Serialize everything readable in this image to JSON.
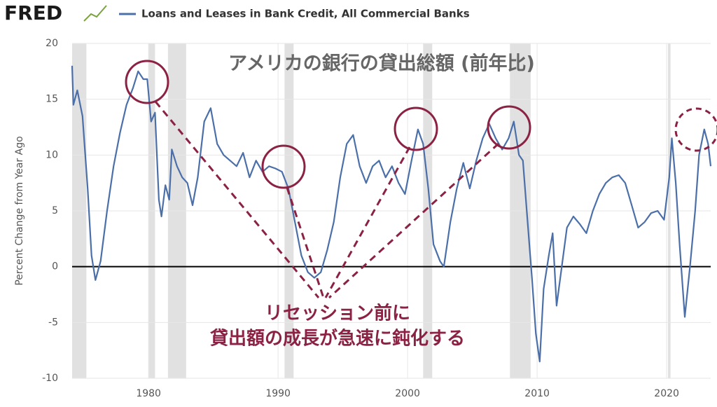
{
  "header": {
    "logo": "FRED"
  },
  "chart_data": {
    "type": "line",
    "title": "アメリカの銀行の貸出総額 (前年比)",
    "annotation": [
      "リセッション前に",
      "貸出額の成長が急速に鈍化する"
    ],
    "y_label": "Percent Change from Year Ago",
    "xlim": [
      1974.1,
      2023.4
    ],
    "xticks": [
      1980,
      1990,
      2000,
      2010,
      2020
    ],
    "ylim": [
      -10,
      20
    ],
    "yticks": [
      -10,
      -5,
      0,
      5,
      10,
      15,
      20
    ],
    "grid": true,
    "recessions": [
      [
        1973.9,
        1975.2
      ],
      [
        1980.0,
        1980.5
      ],
      [
        1981.5,
        1982.9
      ],
      [
        1990.5,
        1991.2
      ],
      [
        2001.2,
        2001.9
      ],
      [
        2007.9,
        2009.5
      ],
      [
        2020.1,
        2020.3
      ]
    ],
    "series": [
      {
        "name": "Loans and Leases in Bank Credit, All Commercial Banks",
        "color": "#4b6fa8",
        "x": [
          1974.1,
          1974.2,
          1974.5,
          1974.9,
          1975.3,
          1975.6,
          1975.9,
          1976.3,
          1976.8,
          1977.3,
          1977.8,
          1978.3,
          1978.8,
          1979.2,
          1979.6,
          1979.9,
          1980.2,
          1980.5,
          1980.8,
          1981.0,
          1981.3,
          1981.6,
          1981.8,
          1982.2,
          1982.6,
          1983.0,
          1983.4,
          1983.8,
          1984.3,
          1984.8,
          1985.3,
          1985.8,
          1986.3,
          1986.8,
          1987.3,
          1987.8,
          1988.3,
          1988.8,
          1989.3,
          1989.8,
          1990.3,
          1990.8,
          1991.3,
          1991.8,
          1992.3,
          1992.8,
          1993.3,
          1993.8,
          1994.3,
          1994.8,
          1995.3,
          1995.8,
          1996.3,
          1996.8,
          1997.3,
          1997.8,
          1998.3,
          1998.8,
          1999.3,
          1999.8,
          2000.3,
          2000.8,
          2001.2,
          2001.6,
          2002.0,
          2002.5,
          2002.8,
          2003.3,
          2003.8,
          2004.3,
          2004.8,
          2005.3,
          2005.8,
          2006.3,
          2006.8,
          2007.3,
          2007.8,
          2008.2,
          2008.6,
          2008.9,
          2009.2,
          2009.6,
          2009.9,
          2010.2,
          2010.5,
          2010.9,
          2011.2,
          2011.5,
          2011.9,
          2012.3,
          2012.8,
          2013.3,
          2013.8,
          2014.3,
          2014.8,
          2015.3,
          2015.8,
          2016.3,
          2016.8,
          2017.3,
          2017.8,
          2018.3,
          2018.8,
          2019.3,
          2019.8,
          2020.2,
          2020.4,
          2020.7,
          2021.0,
          2021.4,
          2021.8,
          2022.2,
          2022.5,
          2022.9,
          2023.2,
          2023.4
        ],
        "values": [
          18,
          14.5,
          15.8,
          13.5,
          7,
          1,
          -1.2,
          0.5,
          5,
          9,
          12,
          14.5,
          16,
          17.5,
          16.8,
          16.8,
          13,
          13.8,
          6,
          4.5,
          7.3,
          6,
          10.5,
          9,
          8,
          7.5,
          5.5,
          8,
          13,
          14.2,
          11,
          10,
          9.5,
          9,
          10.2,
          8,
          9.5,
          8.5,
          9,
          8.8,
          8.5,
          7,
          4,
          1,
          -0.5,
          -1,
          -0.5,
          1.5,
          4,
          8,
          11,
          11.8,
          9,
          7.5,
          9,
          9.5,
          8,
          9,
          7.5,
          6.5,
          9.5,
          12.3,
          11,
          7,
          2,
          0.5,
          0,
          4,
          7,
          9.3,
          7,
          9.5,
          11.5,
          12.8,
          11.5,
          10.5,
          11.5,
          13,
          10,
          9.5,
          5,
          -1,
          -6,
          -8.5,
          -2,
          1,
          3,
          -3.5,
          0,
          3.5,
          4.5,
          3.8,
          3,
          5,
          6.5,
          7.5,
          8,
          8.2,
          7.5,
          5.5,
          3.5,
          4,
          4.8,
          5,
          4.2,
          8,
          11.5,
          7.5,
          2,
          -4.5,
          0,
          5,
          10,
          12.3,
          11,
          9
        ]
      }
    ]
  }
}
